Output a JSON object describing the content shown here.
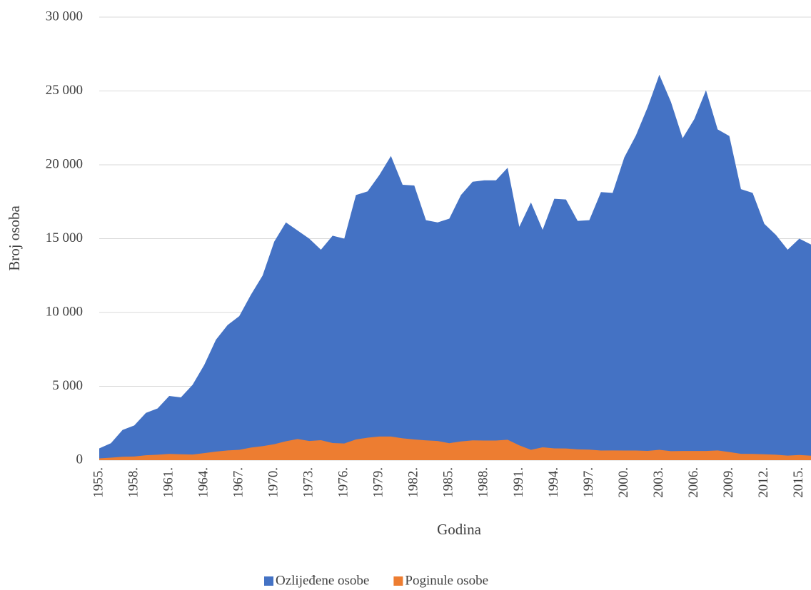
{
  "chart_data": {
    "type": "area",
    "y_label": "Broj osoba",
    "x_label": "Godina",
    "categories": [
      "1955.",
      null,
      null,
      "1958.",
      null,
      null,
      "1961.",
      null,
      null,
      "1964.",
      null,
      null,
      "1967.",
      null,
      null,
      "1970.",
      null,
      null,
      "1973.",
      null,
      null,
      "1976.",
      null,
      null,
      "1979.",
      null,
      null,
      "1982.",
      null,
      null,
      "1985.",
      null,
      null,
      "1988.",
      null,
      null,
      "1991.",
      null,
      null,
      "1994.",
      null,
      null,
      "1997.",
      null,
      null,
      "2000.",
      null,
      null,
      "2003.",
      null,
      null,
      "2006.",
      null,
      null,
      "2009.",
      null,
      null,
      "2012.",
      null,
      null,
      "2015.",
      null
    ],
    "series": [
      {
        "name": "Ozlijeđene osobe",
        "color": "#4472c4",
        "values": [
          800,
          1150,
          2050,
          2350,
          3200,
          3500,
          4350,
          4250,
          5100,
          6450,
          8150,
          9150,
          9750,
          11200,
          12500,
          14800,
          16100,
          15550,
          15000,
          14250,
          15200,
          15000,
          17950,
          18200,
          19300,
          20600,
          18650,
          18600,
          16250,
          16100,
          16350,
          17950,
          18850,
          18950,
          18950,
          19800,
          15800,
          17450,
          15600,
          17700,
          17650,
          16200,
          16250,
          18150,
          18100,
          20500,
          22000,
          23900,
          26100,
          24250,
          21800,
          23100,
          25050,
          22400,
          21950,
          18350,
          18100,
          16000,
          15250,
          14250,
          15000,
          14600
        ]
      },
      {
        "name": "Poginule osobe",
        "color": "#ed7d31",
        "values": [
          120,
          170,
          230,
          250,
          330,
          370,
          420,
          400,
          380,
          480,
          580,
          660,
          700,
          850,
          950,
          1080,
          1280,
          1430,
          1300,
          1350,
          1160,
          1130,
          1400,
          1520,
          1600,
          1600,
          1480,
          1400,
          1340,
          1300,
          1150,
          1270,
          1340,
          1330,
          1330,
          1380,
          1000,
          700,
          870,
          800,
          790,
          730,
          710,
          650,
          660,
          650,
          650,
          630,
          700,
          610,
          620,
          620,
          620,
          660,
          550,
          430,
          420,
          400,
          370,
          310,
          350,
          300
        ]
      }
    ],
    "ylim": [
      0,
      30000
    ],
    "yticks": [
      0,
      {
        "value": 5000,
        "label": "5 000"
      },
      {
        "value": 10000,
        "label": "10 000"
      },
      {
        "value": 15000,
        "label": "15 000"
      },
      {
        "value": 20000,
        "label": "20 000"
      },
      {
        "value": 25000,
        "label": "25 000"
      },
      {
        "value": 30000,
        "label": "30 000"
      }
    ],
    "grid": true,
    "legend": "bottom"
  }
}
